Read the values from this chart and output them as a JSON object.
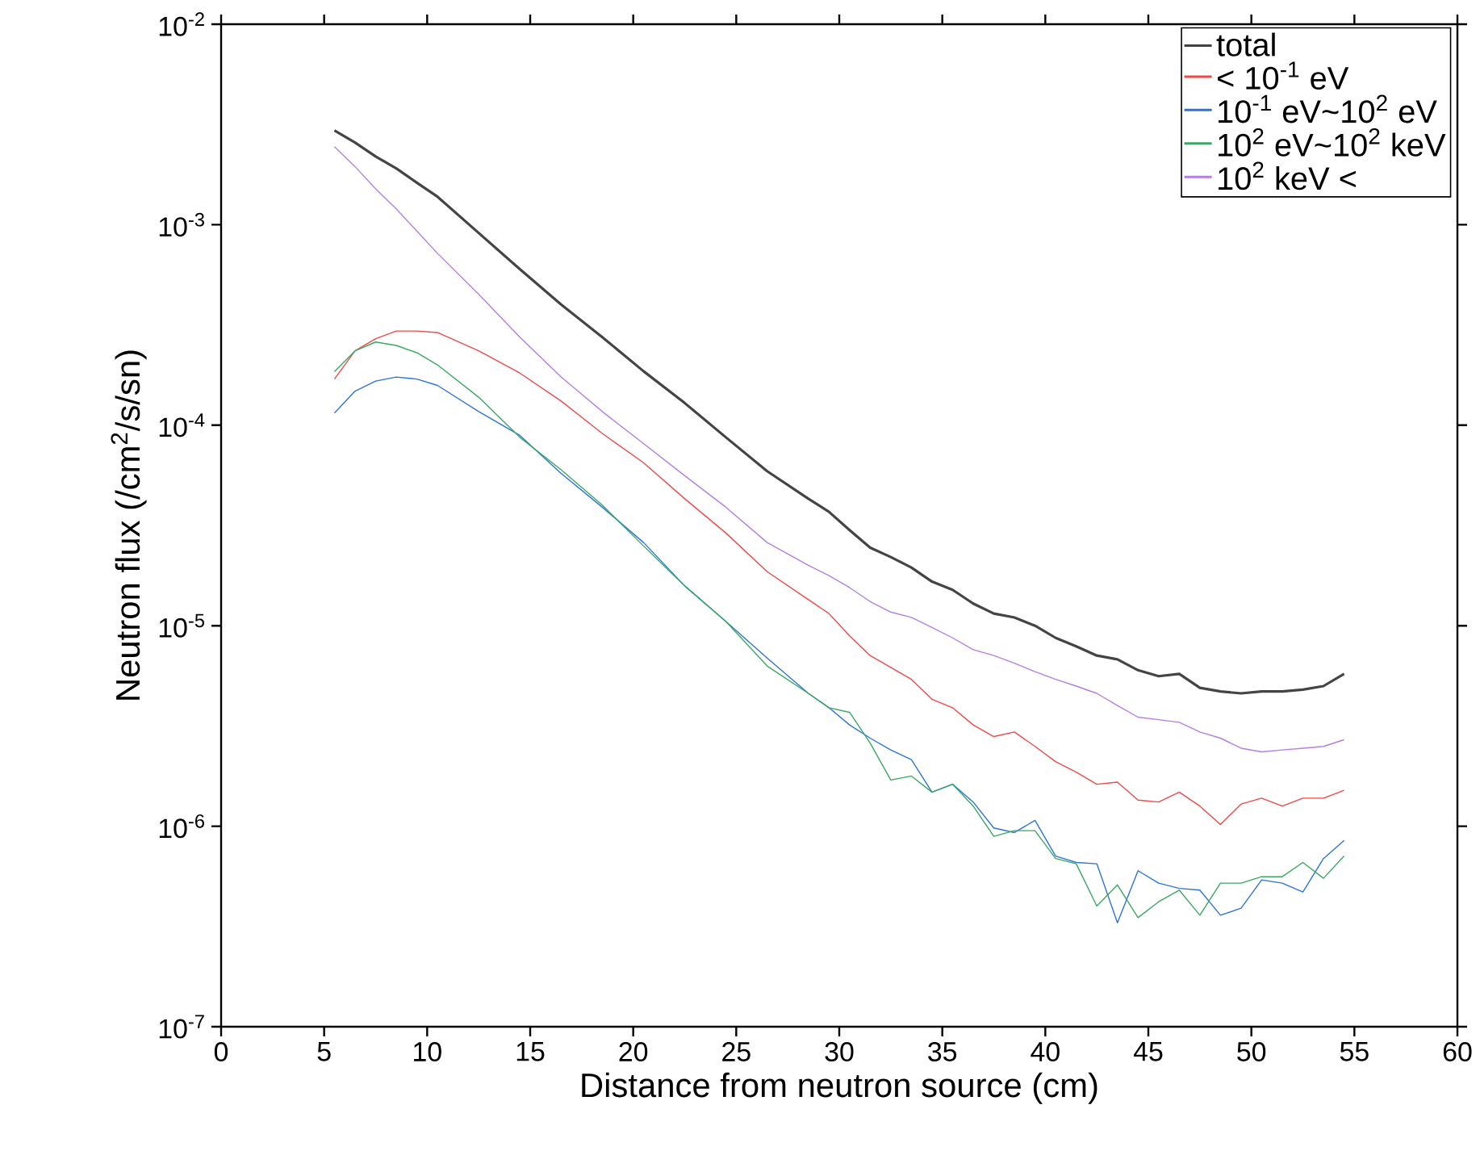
{
  "chart_data": {
    "type": "line",
    "xlabel": "Distance from neutron source (cm)",
    "ylabel": "Neutron flux  (/cm$^{2}$/s/sn)",
    "log": "y",
    "legend": "top right",
    "x": [
      5.5,
      6.5,
      7.5,
      8.5,
      9.5,
      10.5,
      12.5,
      14.5,
      16.5,
      18.5,
      20.5,
      22.5,
      24.5,
      26.5,
      28.5,
      29.5,
      30.5,
      31.5,
      32.5,
      33.5,
      34.5,
      35.5,
      36.5,
      37.5,
      38.5,
      39.5,
      40.5,
      41.5,
      42.5,
      43.5,
      44.5,
      45.5,
      46.5,
      47.5,
      48.5,
      49.5,
      50.5,
      51.5,
      52.5,
      53.5,
      54.5
    ],
    "xlim": [
      0,
      60
    ],
    "xticks": [
      0,
      5,
      10,
      15,
      20,
      25,
      30,
      35,
      40,
      45,
      50,
      55,
      60
    ],
    "ylim": [
      1e-07,
      0.01
    ],
    "yticks": [
      {
        "value": 1e-07,
        "label": "10$^{-7}$"
      },
      {
        "value": 1e-06,
        "label": "10$^{-6}$"
      },
      {
        "value": 1e-05,
        "label": "10$^{-5}$"
      },
      {
        "value": 0.0001,
        "label": "10$^{-4}$"
      },
      {
        "value": 0.001,
        "label": "10$^{-3}$"
      },
      {
        "value": 0.01,
        "label": "10$^{-2}$"
      }
    ],
    "series": [
      {
        "name": "total",
        "color": "#444444",
        "values": [
          0.00295,
          0.00257,
          0.00219,
          0.00191,
          0.00162,
          0.00138,
          0.00091,
          0.0006,
          0.0004,
          0.000275,
          0.000186,
          0.000129,
          8.7e-05,
          5.9e-05,
          4.3e-05,
          3.7e-05,
          3e-05,
          2.45e-05,
          2.2e-05,
          1.95e-05,
          1.66e-05,
          1.51e-05,
          1.29e-05,
          1.15e-05,
          1.1e-05,
          1e-05,
          8.7e-06,
          7.9e-06,
          7.1e-06,
          6.8e-06,
          6e-06,
          5.6e-06,
          5.75e-06,
          4.9e-06,
          4.7e-06,
          4.6e-06,
          4.7e-06,
          4.7e-06,
          4.8e-06,
          5e-06,
          5.75e-06
        ]
      },
      {
        "name": "< 10$^{-1}$ eV",
        "color": "#f04848",
        "values": [
          0.00017,
          0.000235,
          0.00027,
          0.000295,
          0.000295,
          0.00029,
          0.000235,
          0.000182,
          0.000132,
          9.1e-05,
          6.5e-05,
          4.3e-05,
          2.9e-05,
          1.86e-05,
          1.35e-05,
          1.15e-05,
          8.9e-06,
          7.1e-06,
          6.2e-06,
          5.4e-06,
          4.3e-06,
          3.9e-06,
          3.2e-06,
          2.8e-06,
          2.95e-06,
          2.5e-06,
          2.1e-06,
          1.86e-06,
          1.62e-06,
          1.66e-06,
          1.35e-06,
          1.32e-06,
          1.48e-06,
          1.26e-06,
          1.02e-06,
          1.29e-06,
          1.38e-06,
          1.26e-06,
          1.38e-06,
          1.38e-06,
          1.51e-06
        ]
      },
      {
        "name": "10$^{-1}$ eV~10$^{2}$ eV",
        "color": "#2a74dc",
        "values": [
          0.000115,
          0.000148,
          0.000166,
          0.000174,
          0.00017,
          0.000158,
          0.000117,
          8.9e-05,
          5.75e-05,
          3.9e-05,
          2.6e-05,
          1.58e-05,
          1.05e-05,
          6.9e-06,
          4.6e-06,
          3.9e-06,
          3.2e-06,
          2.75e-06,
          2.4e-06,
          2.15e-06,
          1.48e-06,
          1.62e-06,
          1.32e-06,
          9.8e-07,
          9.3e-07,
          1.07e-06,
          7.1e-07,
          6.6e-07,
          6.5e-07,
          3.3e-07,
          6e-07,
          5.2e-07,
          4.9e-07,
          4.8e-07,
          3.6e-07,
          3.9e-07,
          5.4e-07,
          5.2e-07,
          4.7e-07,
          6.9e-07,
          8.5e-07
        ]
      },
      {
        "name": "10$^{2}$ eV~10$^{2}$ keV",
        "color": "#3aa862",
        "values": [
          0.000185,
          0.000235,
          0.00026,
          0.00025,
          0.00023,
          0.0002,
          0.000138,
          8.7e-05,
          6e-05,
          4e-05,
          2.5e-05,
          1.58e-05,
          1.05e-05,
          6.3e-06,
          4.6e-06,
          3.9e-06,
          3.7e-06,
          2.6e-06,
          1.7e-06,
          1.78e-06,
          1.48e-06,
          1.62e-06,
          1.26e-06,
          8.9e-07,
          9.5e-07,
          9.5e-07,
          6.9e-07,
          6.5e-07,
          4e-07,
          5.1e-07,
          3.5e-07,
          4.2e-07,
          4.8e-07,
          3.6e-07,
          5.2e-07,
          5.2e-07,
          5.6e-07,
          5.6e-07,
          6.6e-07,
          5.5e-07,
          7.1e-07
        ]
      },
      {
        "name": "10$^{2}$ keV <",
        "color": "#b47ee6",
        "values": [
          0.00245,
          0.00195,
          0.00151,
          0.0012,
          0.00093,
          0.00072,
          0.00045,
          0.000275,
          0.000174,
          0.000117,
          8.1e-05,
          5.6e-05,
          3.9e-05,
          2.6e-05,
          2e-05,
          1.78e-05,
          1.55e-05,
          1.32e-05,
          1.17e-05,
          1.1e-05,
          9.8e-06,
          8.7e-06,
          7.6e-06,
          7.1e-06,
          6.5e-06,
          5.9e-06,
          5.4e-06,
          5e-06,
          4.6e-06,
          4e-06,
          3.5e-06,
          3.4e-06,
          3.3e-06,
          2.95e-06,
          2.75e-06,
          2.45e-06,
          2.35e-06,
          2.4e-06,
          2.45e-06,
          2.5e-06,
          2.7e-06
        ]
      }
    ]
  }
}
